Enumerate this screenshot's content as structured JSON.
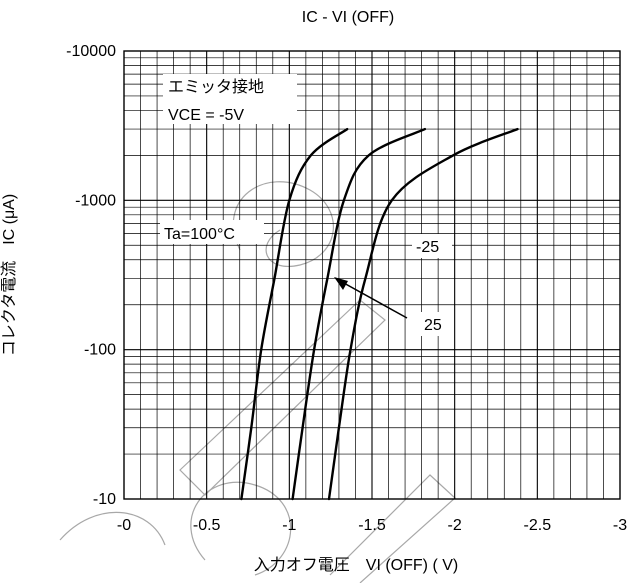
{
  "chart_data": {
    "type": "line",
    "title": "IC - VI (OFF)",
    "xlabel": "入力オフ電圧　VI (OFF) ( V)",
    "ylabel": "コレクタ電流　IC (μA)",
    "x_ticks": [
      {
        "v": 0,
        "label": "-0"
      },
      {
        "v": -0.5,
        "label": "-0.5"
      },
      {
        "v": -1,
        "label": "-1"
      },
      {
        "v": -1.5,
        "label": "-1.5"
      },
      {
        "v": -2,
        "label": "-2"
      },
      {
        "v": -2.5,
        "label": "-2.5"
      },
      {
        "v": -3,
        "label": "-3"
      }
    ],
    "y_ticks": [
      {
        "v": -10,
        "label": "-10"
      },
      {
        "v": -100,
        "label": "-100"
      },
      {
        "v": -1000,
        "label": "-1000"
      },
      {
        "v": -10000,
        "label": "-10000"
      }
    ],
    "xlim": [
      0,
      -3
    ],
    "ylim": [
      -10,
      -10000
    ],
    "y_scale": "log",
    "grid": true,
    "series": [
      {
        "name": "100",
        "points": [
          [
            -0.71,
            -10
          ],
          [
            -0.77,
            -30
          ],
          [
            -0.83,
            -100
          ],
          [
            -0.91,
            -300
          ],
          [
            -1.0,
            -1000
          ],
          [
            -1.13,
            -2000
          ],
          [
            -1.35,
            -3000
          ]
        ]
      },
      {
        "name": "25",
        "points": [
          [
            -1.02,
            -10
          ],
          [
            -1.08,
            -30
          ],
          [
            -1.15,
            -100
          ],
          [
            -1.23,
            -300
          ],
          [
            -1.33,
            -1000
          ],
          [
            -1.48,
            -2000
          ],
          [
            -1.82,
            -3000
          ]
        ]
      },
      {
        "name": "-25",
        "points": [
          [
            -1.24,
            -10
          ],
          [
            -1.3,
            -30
          ],
          [
            -1.37,
            -100
          ],
          [
            -1.46,
            -300
          ],
          [
            -1.62,
            -1000
          ],
          [
            -1.99,
            -2000
          ],
          [
            -2.38,
            -3000
          ]
        ]
      }
    ],
    "annotations": {
      "condition_line1": "エミッタ接地",
      "condition_line2": "VCE = -5V",
      "ta_label": "Ta=100°C",
      "label_m25": "-25",
      "label_25": "25"
    }
  }
}
